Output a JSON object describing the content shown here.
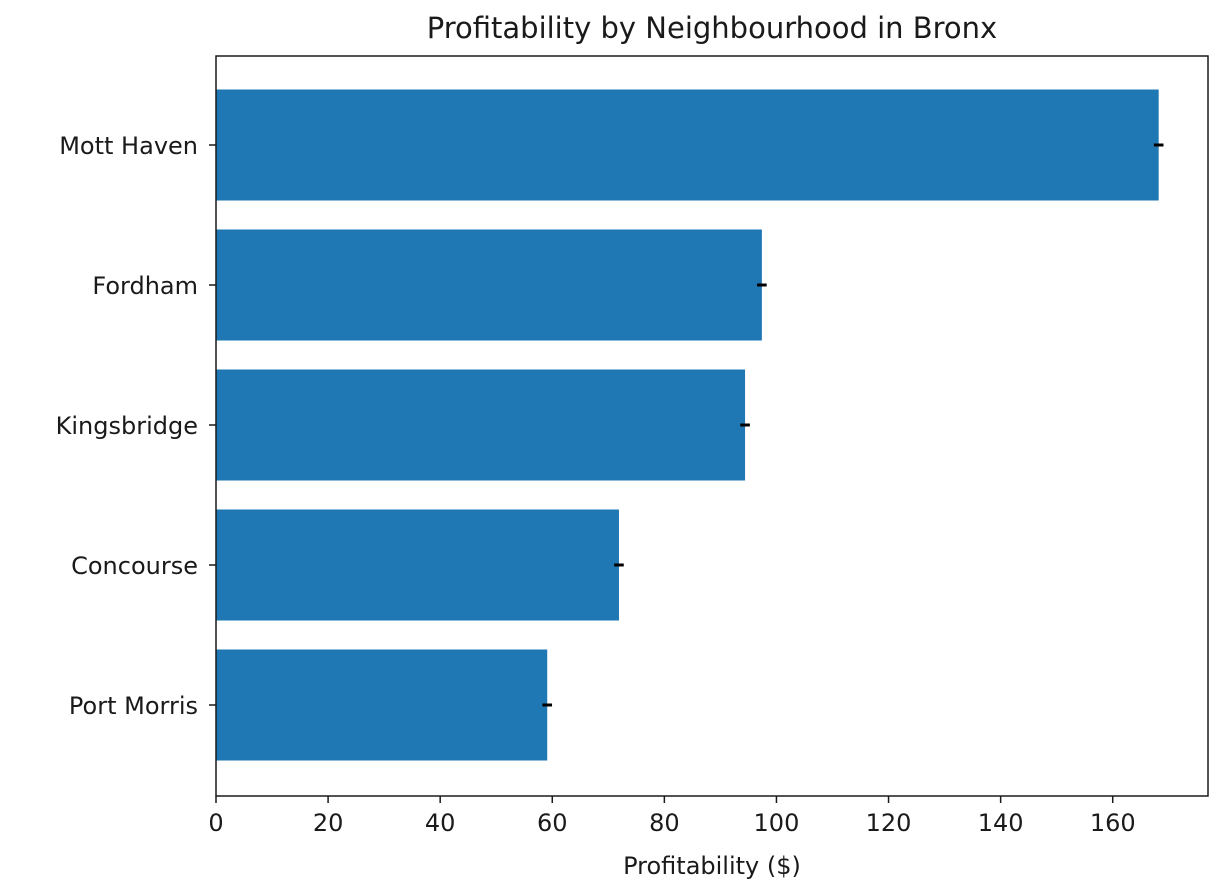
{
  "chart_data": {
    "type": "bar",
    "orientation": "horizontal",
    "title": "Profitability by Neighbourhood in Bronx",
    "xlabel": "Profitability ($)",
    "ylabel": "",
    "categories": [
      "Mott Haven",
      "Fordham",
      "Kingsbridge",
      "Concourse",
      "Port Morris"
    ],
    "values": [
      168.2,
      97.4,
      94.4,
      71.9,
      59.1
    ],
    "error": [
      0.5,
      0.5,
      0.5,
      0.5,
      0.5
    ],
    "xlim": [
      0,
      177
    ],
    "xticks": [
      0,
      20,
      40,
      60,
      80,
      100,
      120,
      140,
      160
    ],
    "bar_color": "#1f77b4",
    "error_color": "#000000",
    "grid": false,
    "legend": "none"
  }
}
